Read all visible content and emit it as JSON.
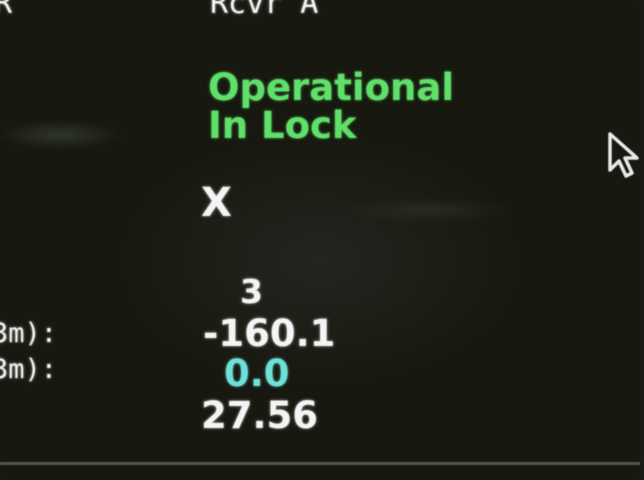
{
  "header": {
    "left_label": "R",
    "right_label": "Rcvr A"
  },
  "status": {
    "line1": "Operational",
    "line2": "In Lock"
  },
  "indicator": "X",
  "readings": {
    "label_1": "3m):",
    "label_2": "3m):",
    "value_1": "3",
    "value_2": "-160.1",
    "value_3": "0.0",
    "value_4": "27.56"
  },
  "icons": {
    "cursor": "mouse-pointer-icon"
  },
  "colors": {
    "text_white": "#f4f4f4",
    "status_green": "#5fe06a",
    "value_cyan": "#6ee0d8",
    "background": "#1b1c17"
  }
}
